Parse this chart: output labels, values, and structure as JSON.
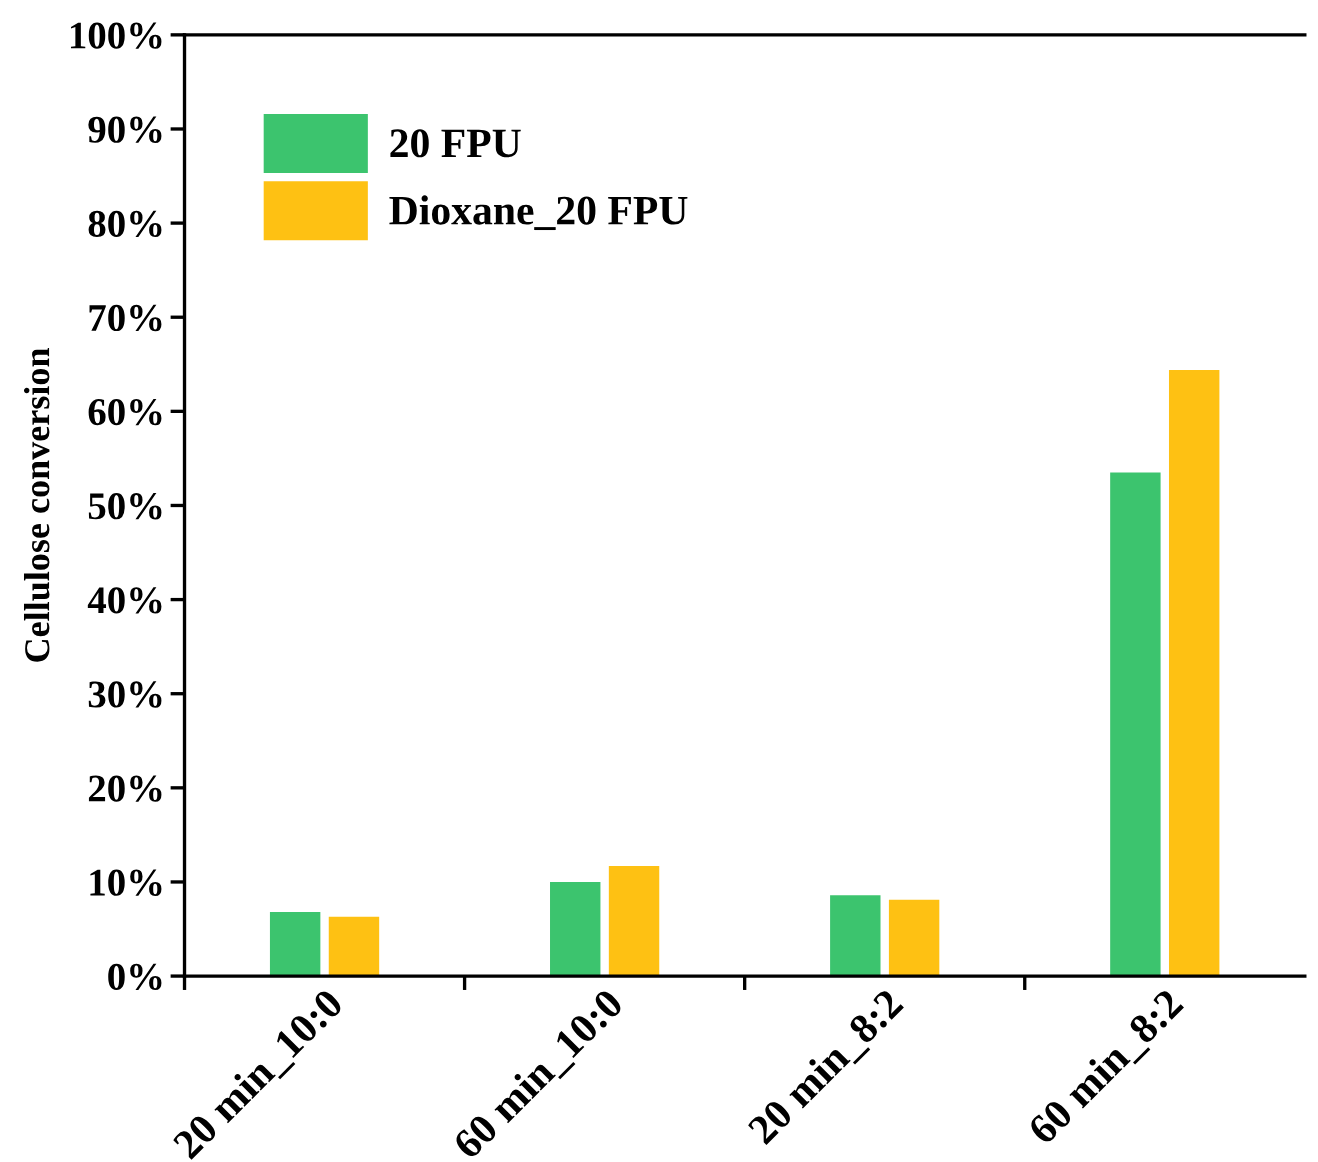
{
  "chart_data": {
    "type": "bar",
    "ylabel": "Cellulose conversion",
    "categories": [
      "20 min_10:0",
      "60 min_10:0",
      "20 min_8:2",
      "60 min_8:2"
    ],
    "series": [
      {
        "name": "20 FPU",
        "color": "#3cc46e",
        "values": [
          6.8,
          10,
          8.6,
          53.5
        ]
      },
      {
        "name": "Dioxane_20 FPU",
        "color": "#fec113",
        "values": [
          6.3,
          11.7,
          8.1,
          64.4
        ]
      }
    ],
    "ylim": [
      0,
      100
    ],
    "yticks": [
      {
        "value": 0,
        "label": "0%"
      },
      {
        "value": 10,
        "label": "10%"
      },
      {
        "value": 20,
        "label": "20%"
      },
      {
        "value": 30,
        "label": "30%"
      },
      {
        "value": 40,
        "label": "40%"
      },
      {
        "value": 50,
        "label": "50%"
      },
      {
        "value": 60,
        "label": "60%"
      },
      {
        "value": 70,
        "label": "70%"
      },
      {
        "value": 80,
        "label": "80%"
      },
      {
        "value": 90,
        "label": "90%"
      },
      {
        "value": 100,
        "label": "100%"
      }
    ],
    "grid": false,
    "legend": "top left"
  }
}
